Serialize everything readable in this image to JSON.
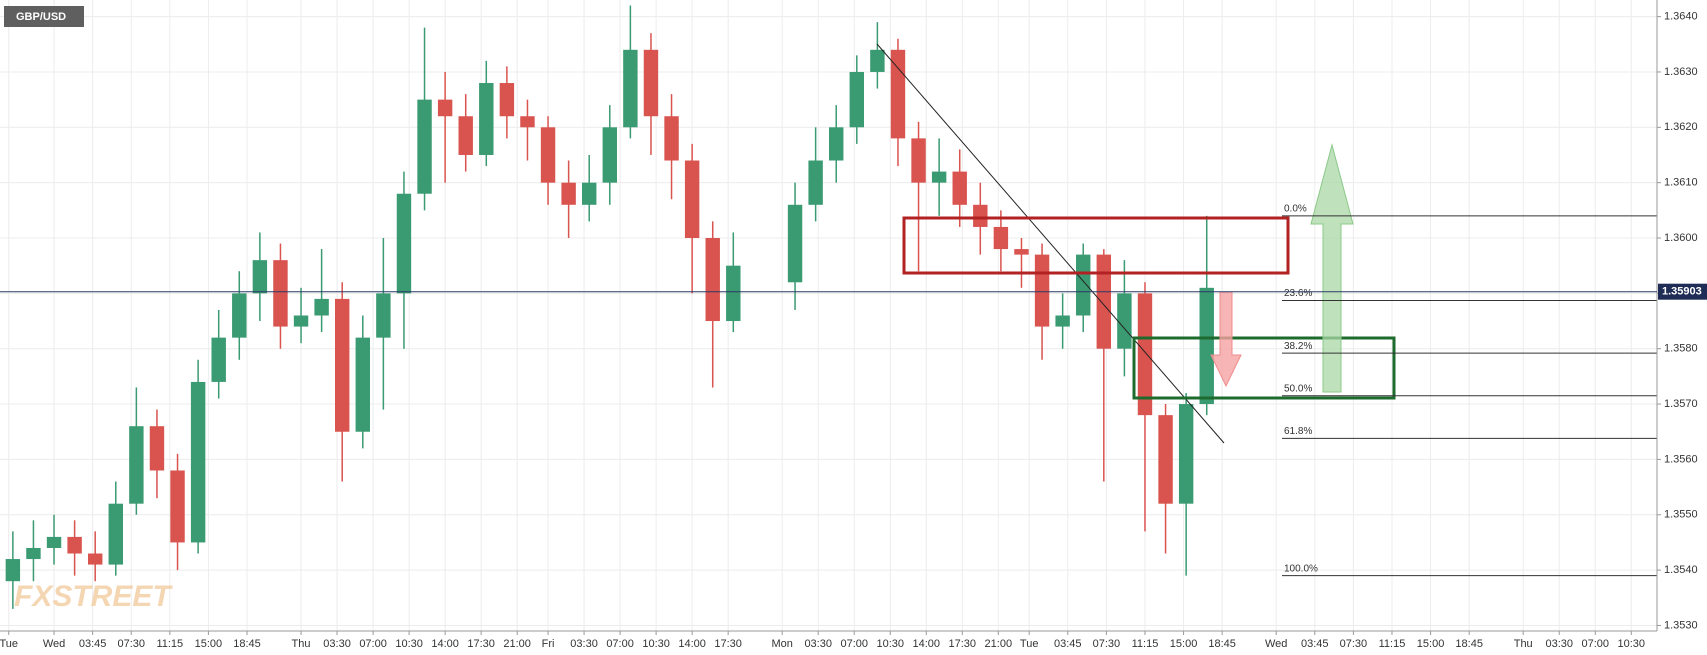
{
  "chart_data": {
    "type": "candlestick",
    "symbol": "GBP/USD",
    "watermark": "FXSTREET",
    "x": [
      -4,
      -2,
      0,
      2,
      4,
      6,
      8,
      10,
      12,
      14,
      16,
      18,
      20,
      22,
      24,
      26,
      28,
      30,
      32,
      34,
      36,
      38,
      40,
      42,
      44,
      46,
      48,
      50,
      52,
      54,
      56,
      58,
      60,
      62,
      64,
      66,
      72,
      74,
      76,
      78,
      80,
      82,
      84,
      86,
      88,
      90,
      92,
      94,
      96,
      98,
      100,
      102,
      104,
      106,
      108,
      110,
      112
    ],
    "open": [
      1.3538,
      1.3542,
      1.3544,
      1.3546,
      1.3543,
      1.3541,
      1.3552,
      1.3566,
      1.3558,
      1.3545,
      1.3574,
      1.3582,
      1.359,
      1.3596,
      1.3584,
      1.3586,
      1.3589,
      1.3565,
      1.3582,
      1.359,
      1.3608,
      1.3625,
      1.3622,
      1.3615,
      1.3628,
      1.3622,
      1.362,
      1.361,
      1.3606,
      1.361,
      1.362,
      1.3634,
      1.3622,
      1.3614,
      1.36,
      1.3585,
      1.3592,
      1.3606,
      1.3614,
      1.362,
      1.363,
      1.3634,
      1.3618,
      1.361,
      1.3612,
      1.3606,
      1.3602,
      1.3598,
      1.3597,
      1.3584,
      1.3586,
      1.3597,
      1.358,
      1.359,
      1.3568,
      1.3552,
      1.357
    ],
    "high": [
      1.3547,
      1.3549,
      1.355,
      1.3549,
      1.3547,
      1.3556,
      1.3573,
      1.3569,
      1.3561,
      1.3578,
      1.3587,
      1.3594,
      1.3601,
      1.3599,
      1.3591,
      1.3598,
      1.3592,
      1.3586,
      1.36,
      1.3612,
      1.3638,
      1.363,
      1.3626,
      1.3632,
      1.3631,
      1.3625,
      1.3622,
      1.3614,
      1.3615,
      1.3624,
      1.3642,
      1.3637,
      1.3626,
      1.3617,
      1.3603,
      1.3601,
      1.361,
      1.362,
      1.3624,
      1.3633,
      1.3639,
      1.3636,
      1.3621,
      1.3618,
      1.3616,
      1.361,
      1.3605,
      1.36,
      1.3599,
      1.359,
      1.3599,
      1.3598,
      1.3596,
      1.3592,
      1.357,
      1.3572,
      1.3604
    ],
    "low": [
      1.3533,
      1.3538,
      1.3541,
      1.3539,
      1.3538,
      1.3539,
      1.355,
      1.3553,
      1.354,
      1.3543,
      1.3571,
      1.3578,
      1.3585,
      1.358,
      1.3581,
      1.3583,
      1.3556,
      1.3562,
      1.3569,
      1.358,
      1.3605,
      1.361,
      1.3612,
      1.3613,
      1.3618,
      1.3614,
      1.3606,
      1.36,
      1.3603,
      1.3606,
      1.3618,
      1.3615,
      1.3607,
      1.359,
      1.3573,
      1.3583,
      1.3587,
      1.3603,
      1.361,
      1.3617,
      1.3627,
      1.3613,
      1.3594,
      1.3604,
      1.3602,
      1.3597,
      1.3594,
      1.3591,
      1.3578,
      1.358,
      1.3583,
      1.3556,
      1.3575,
      1.3547,
      1.3543,
      1.3539,
      1.3568
    ],
    "close": [
      1.3542,
      1.3544,
      1.3546,
      1.3543,
      1.3541,
      1.3552,
      1.3566,
      1.3558,
      1.3545,
      1.3574,
      1.3582,
      1.359,
      1.3596,
      1.3584,
      1.3586,
      1.3589,
      1.3565,
      1.3582,
      1.359,
      1.3608,
      1.3625,
      1.3622,
      1.3615,
      1.3628,
      1.3622,
      1.362,
      1.361,
      1.3606,
      1.361,
      1.362,
      1.3634,
      1.3622,
      1.3614,
      1.36,
      1.3585,
      1.3595,
      1.3606,
      1.3614,
      1.362,
      1.363,
      1.3634,
      1.3618,
      1.361,
      1.3612,
      1.3606,
      1.3602,
      1.3598,
      1.3597,
      1.3584,
      1.3586,
      1.3597,
      1.358,
      1.359,
      1.3568,
      1.3552,
      1.357,
      1.3591
    ],
    "up_color": "#3a9a72",
    "down_color": "#d9534f",
    "xlim": [
      -5.25,
      155.75
    ],
    "xticks": [
      {
        "value": -4.4,
        "label": "Tue"
      },
      {
        "value": 0,
        "label": "Wed"
      },
      {
        "value": 3.75,
        "label": "03:45"
      },
      {
        "value": 7.5,
        "label": "07:30"
      },
      {
        "value": 11.25,
        "label": "11:15"
      },
      {
        "value": 15,
        "label": "15:00"
      },
      {
        "value": 18.75,
        "label": "18:45"
      },
      {
        "value": 24,
        "label": "Thu"
      },
      {
        "value": 27.5,
        "label": "03:30"
      },
      {
        "value": 31,
        "label": "07:00"
      },
      {
        "value": 34.5,
        "label": "10:30"
      },
      {
        "value": 38,
        "label": "14:00"
      },
      {
        "value": 41.5,
        "label": "17:30"
      },
      {
        "value": 45,
        "label": "21:00"
      },
      {
        "value": 48,
        "label": "Fri"
      },
      {
        "value": 51.5,
        "label": "03:30"
      },
      {
        "value": 55,
        "label": "07:00"
      },
      {
        "value": 58.5,
        "label": "10:30"
      },
      {
        "value": 62,
        "label": "14:00"
      },
      {
        "value": 65.5,
        "label": "17:30"
      },
      {
        "value": 70.75,
        "label": "Mon"
      },
      {
        "value": 74.25,
        "label": "03:30"
      },
      {
        "value": 77.75,
        "label": "07:00"
      },
      {
        "value": 81.25,
        "label": "10:30"
      },
      {
        "value": 84.75,
        "label": "14:00"
      },
      {
        "value": 88.25,
        "label": "17:30"
      },
      {
        "value": 91.75,
        "label": "21:00"
      },
      {
        "value": 94.75,
        "label": "Tue"
      },
      {
        "value": 98.5,
        "label": "03:45"
      },
      {
        "value": 102.25,
        "label": "07:30"
      },
      {
        "value": 106,
        "label": "11:15"
      },
      {
        "value": 109.75,
        "label": "15:00"
      },
      {
        "value": 113.5,
        "label": "18:45"
      },
      {
        "value": 118.75,
        "label": "Wed"
      },
      {
        "value": 122.5,
        "label": "03:45"
      },
      {
        "value": 126.25,
        "label": "07:30"
      },
      {
        "value": 130,
        "label": "11:15"
      },
      {
        "value": 133.75,
        "label": "15:00"
      },
      {
        "value": 137.5,
        "label": "18:45"
      },
      {
        "value": 142.75,
        "label": "Thu"
      },
      {
        "value": 146.25,
        "label": "03:30"
      },
      {
        "value": 149.75,
        "label": "07:00"
      },
      {
        "value": 153.25,
        "label": "10:30"
      }
    ],
    "ylim": [
      1.3529,
      1.3643
    ],
    "yticks": [
      {
        "value": 1.353,
        "label": "1.3530"
      },
      {
        "value": 1.354,
        "label": "1.3540"
      },
      {
        "value": 1.355,
        "label": "1.3550"
      },
      {
        "value": 1.356,
        "label": "1.3560"
      },
      {
        "value": 1.357,
        "label": "1.3570"
      },
      {
        "value": 1.358,
        "label": "1.3580"
      },
      {
        "value": 1.359,
        "label": "1.3590"
      },
      {
        "value": 1.36,
        "label": "1.3600"
      },
      {
        "value": 1.361,
        "label": "1.3610"
      },
      {
        "value": 1.362,
        "label": "1.3620"
      },
      {
        "value": 1.363,
        "label": "1.3630"
      },
      {
        "value": 1.364,
        "label": "1.3640"
      }
    ],
    "grid": true,
    "last_price": {
      "value": 1.35903,
      "label": "1.35903"
    },
    "fib_levels": [
      {
        "label": "0.0%",
        "value": 1.3604
      },
      {
        "label": "23.6%",
        "value": 1.35887
      },
      {
        "label": "38.2%",
        "value": 1.35792
      },
      {
        "label": "50.0%",
        "value": 1.35715
      },
      {
        "label": "61.8%",
        "value": 1.35638
      },
      {
        "label": "100.0%",
        "value": 1.3539
      }
    ]
  }
}
